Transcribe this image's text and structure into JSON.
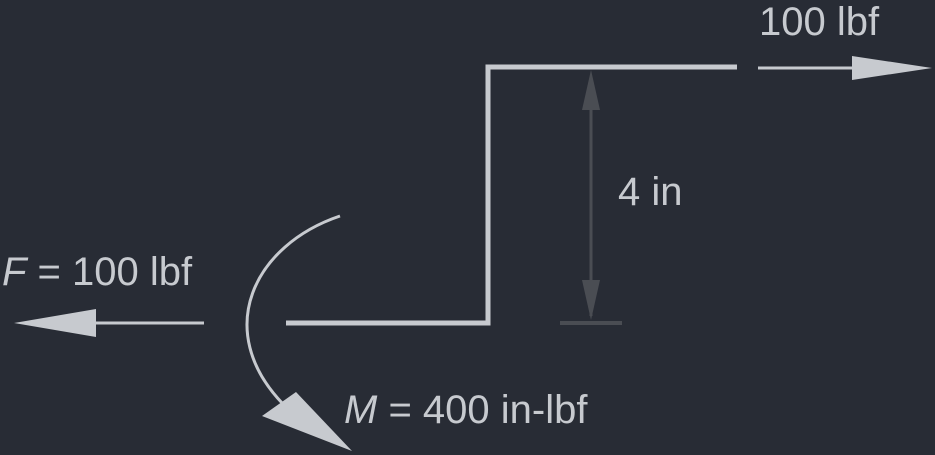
{
  "labels": {
    "top_force": "100 lbf",
    "dimension": "4 in",
    "left_force_symbol": "F",
    "left_force_rest": " = 100 lbf",
    "moment_symbol": "M",
    "moment_rest": " = 400 in-lbf"
  },
  "colors": {
    "background": "#282c35",
    "lines": "#c7cacf",
    "dimension": "#4a4d53"
  }
}
